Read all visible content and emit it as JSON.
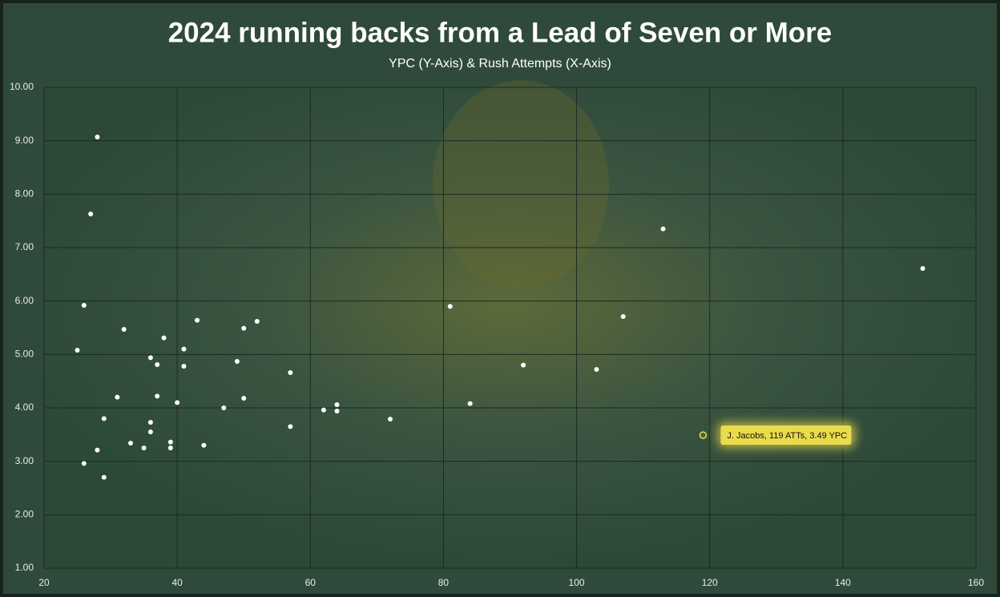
{
  "chart_data": {
    "type": "scatter",
    "title": "2024 running backs from a Lead of Seven or More",
    "subtitle": "YPC (Y-Axis) & Rush Attempts (X-Axis)",
    "x": [
      28,
      27,
      26,
      25,
      32,
      28,
      26,
      29,
      29,
      31,
      33,
      35,
      36,
      37,
      38,
      36,
      36,
      37,
      39,
      39,
      40,
      41,
      41,
      43,
      44,
      47,
      49,
      50,
      50,
      52,
      57,
      57,
      62,
      64,
      64,
      72,
      81,
      84,
      92,
      103,
      107,
      113,
      152
    ],
    "values": [
      9.07,
      7.63,
      5.92,
      5.08,
      5.47,
      3.21,
      2.96,
      2.7,
      3.8,
      4.2,
      3.34,
      3.25,
      4.94,
      4.81,
      5.31,
      3.73,
      3.55,
      4.22,
      3.36,
      3.25,
      4.1,
      5.1,
      4.78,
      5.64,
      3.3,
      4.0,
      4.87,
      5.49,
      4.18,
      5.62,
      4.66,
      3.65,
      3.96,
      4.06,
      3.94,
      3.79,
      5.9,
      4.08,
      4.8,
      4.72,
      5.71,
      7.35,
      6.61
    ],
    "color": "#ffffff",
    "annotation": {
      "text": "J. Jacobs, 119 ATTs, 3.49 YPC",
      "x": 119,
      "y": 3.49,
      "color": "#eadb4c"
    },
    "xlim": [
      20,
      160
    ],
    "xticks": [
      20,
      40,
      60,
      80,
      100,
      120,
      140,
      160
    ],
    "ylim": [
      1,
      10
    ],
    "yticks": [
      {
        "value": 1,
        "label": "1.00"
      },
      {
        "value": 2,
        "label": "2.00"
      },
      {
        "value": 3,
        "label": "3.00"
      },
      {
        "value": 4,
        "label": "4.00"
      },
      {
        "value": 5,
        "label": "5.00"
      },
      {
        "value": 6,
        "label": "6.00"
      },
      {
        "value": 7,
        "label": "7.00"
      },
      {
        "value": 8,
        "label": "8.00"
      },
      {
        "value": 9,
        "label": "9.00"
      },
      {
        "value": 10,
        "label": "10.00"
      }
    ],
    "grid": true
  }
}
